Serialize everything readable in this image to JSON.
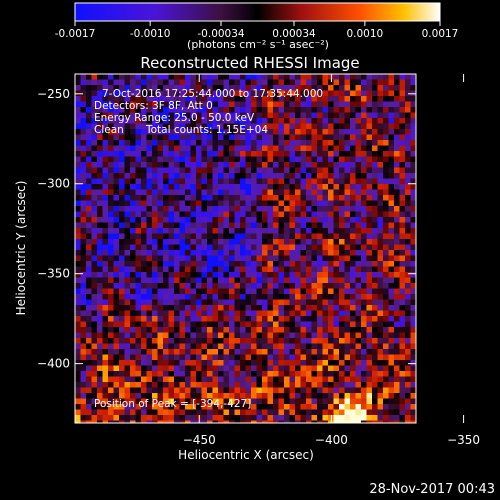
{
  "colorbar": {
    "tick_labels": [
      "-0.0017",
      "-0.0010",
      "-0.00034",
      "0.00034",
      "0.0010",
      "0.0017"
    ],
    "tick_values": [
      -0.0017,
      -0.001,
      -0.00034,
      0.00034,
      0.001,
      0.0017
    ],
    "range": [
      -0.0017,
      0.0017
    ],
    "units": "(photons cm⁻² s⁻¹ asec⁻²)"
  },
  "chart_data": {
    "type": "heatmap",
    "title": "Reconstructed RHESSI Image",
    "xlabel": "Heliocentric X (arcsec)",
    "ylabel": "Heliocentric Y (arcsec)",
    "xlim": [
      -497,
      -368
    ],
    "ylim": [
      -433,
      -239
    ],
    "x_ticks": [
      -450,
      -400,
      -350
    ],
    "y_ticks": [
      -250,
      -300,
      -350,
      -400
    ],
    "x_tick_labels": [
      "−450",
      "−400",
      "−350"
    ],
    "y_tick_labels": [
      "−250",
      "−300",
      "−350",
      "−400"
    ],
    "grid": false,
    "annotations": {
      "time": "7-Oct-2016 17:25:44.000 to 17:35:44.000",
      "detectors": "Detectors: 3F 8F, Att 0",
      "energy": "Energy Range: 25.0 - 50.0 keV",
      "method": "Clean",
      "counts": "Total counts: 1.15E+04",
      "peak": "Position of Peak = [-394,-427]"
    },
    "peak_position": [
      -394,
      -427
    ]
  },
  "footer": {
    "timestamp": "28-Nov-2017 00:43"
  }
}
